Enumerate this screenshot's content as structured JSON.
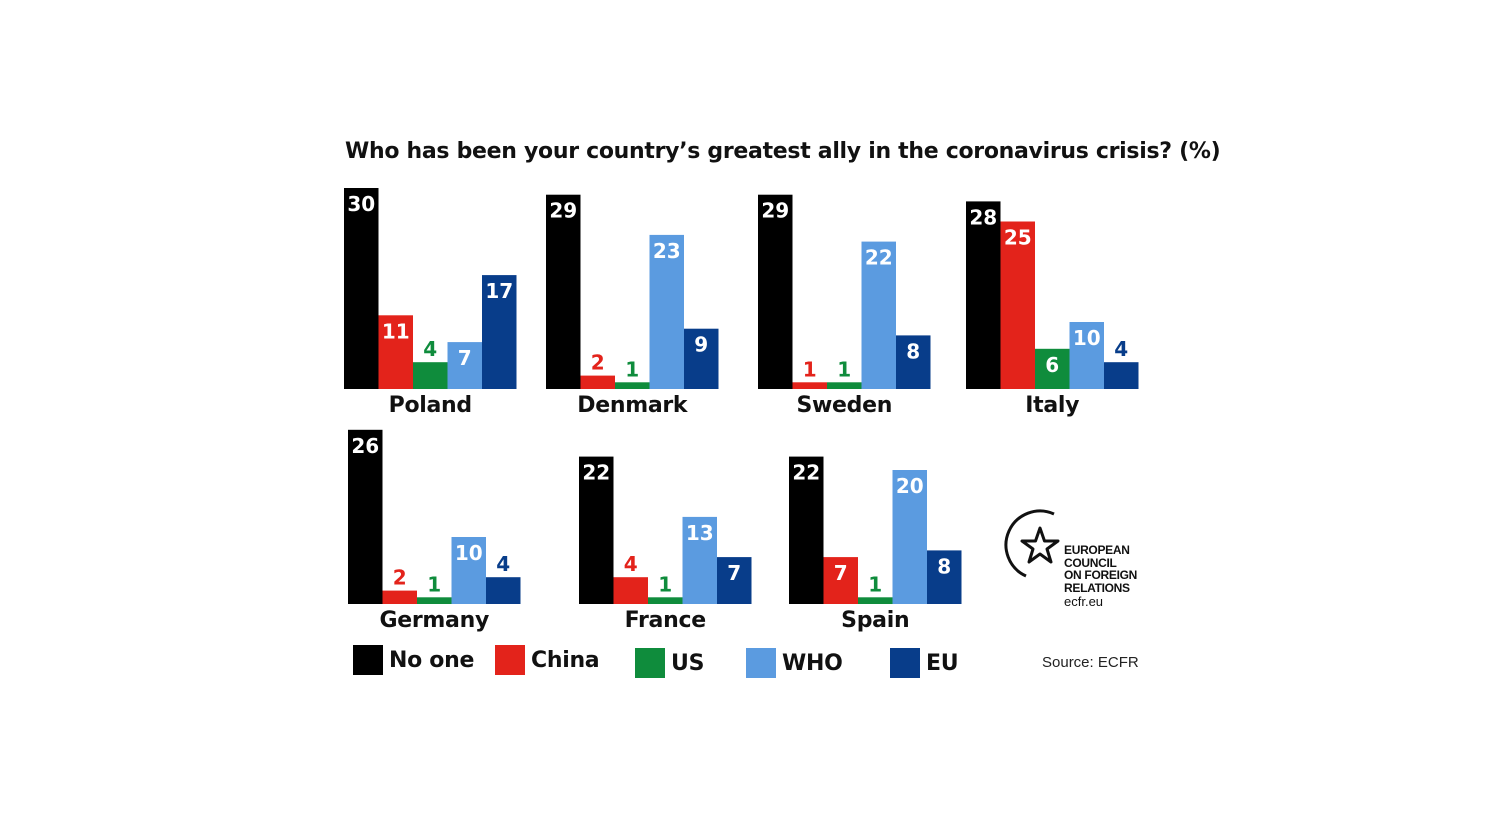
{
  "chart_data": {
    "type": "bar",
    "title": "Who has been your country’s greatest ally in the coronavirus crisis? (%)",
    "series": [
      {
        "name": "No one",
        "color": "#000000"
      },
      {
        "name": "China",
        "color": "#e3231b"
      },
      {
        "name": "US",
        "color": "#0f8c3c"
      },
      {
        "name": "WHO",
        "color": "#5b9be0"
      },
      {
        "name": "EU",
        "color": "#083d8a"
      }
    ],
    "groups": [
      {
        "country": "Poland",
        "values": [
          30,
          11,
          4,
          7,
          17
        ]
      },
      {
        "country": "Denmark",
        "values": [
          29,
          2,
          1,
          23,
          9
        ]
      },
      {
        "country": "Sweden",
        "values": [
          29,
          1,
          1,
          22,
          8
        ]
      },
      {
        "country": "Italy",
        "values": [
          28,
          25,
          6,
          10,
          4
        ]
      },
      {
        "country": "Germany",
        "values": [
          26,
          2,
          1,
          10,
          4
        ]
      },
      {
        "country": "France",
        "values": [
          22,
          4,
          1,
          13,
          7
        ]
      },
      {
        "country": "Spain",
        "values": [
          22,
          7,
          1,
          20,
          8
        ]
      }
    ]
  },
  "source": "Source: ECFR",
  "logo": {
    "lines": [
      "EUROPEAN",
      "COUNCIL",
      "ON FOREIGN",
      "RELATIONS"
    ],
    "url": "ecfr.eu"
  }
}
